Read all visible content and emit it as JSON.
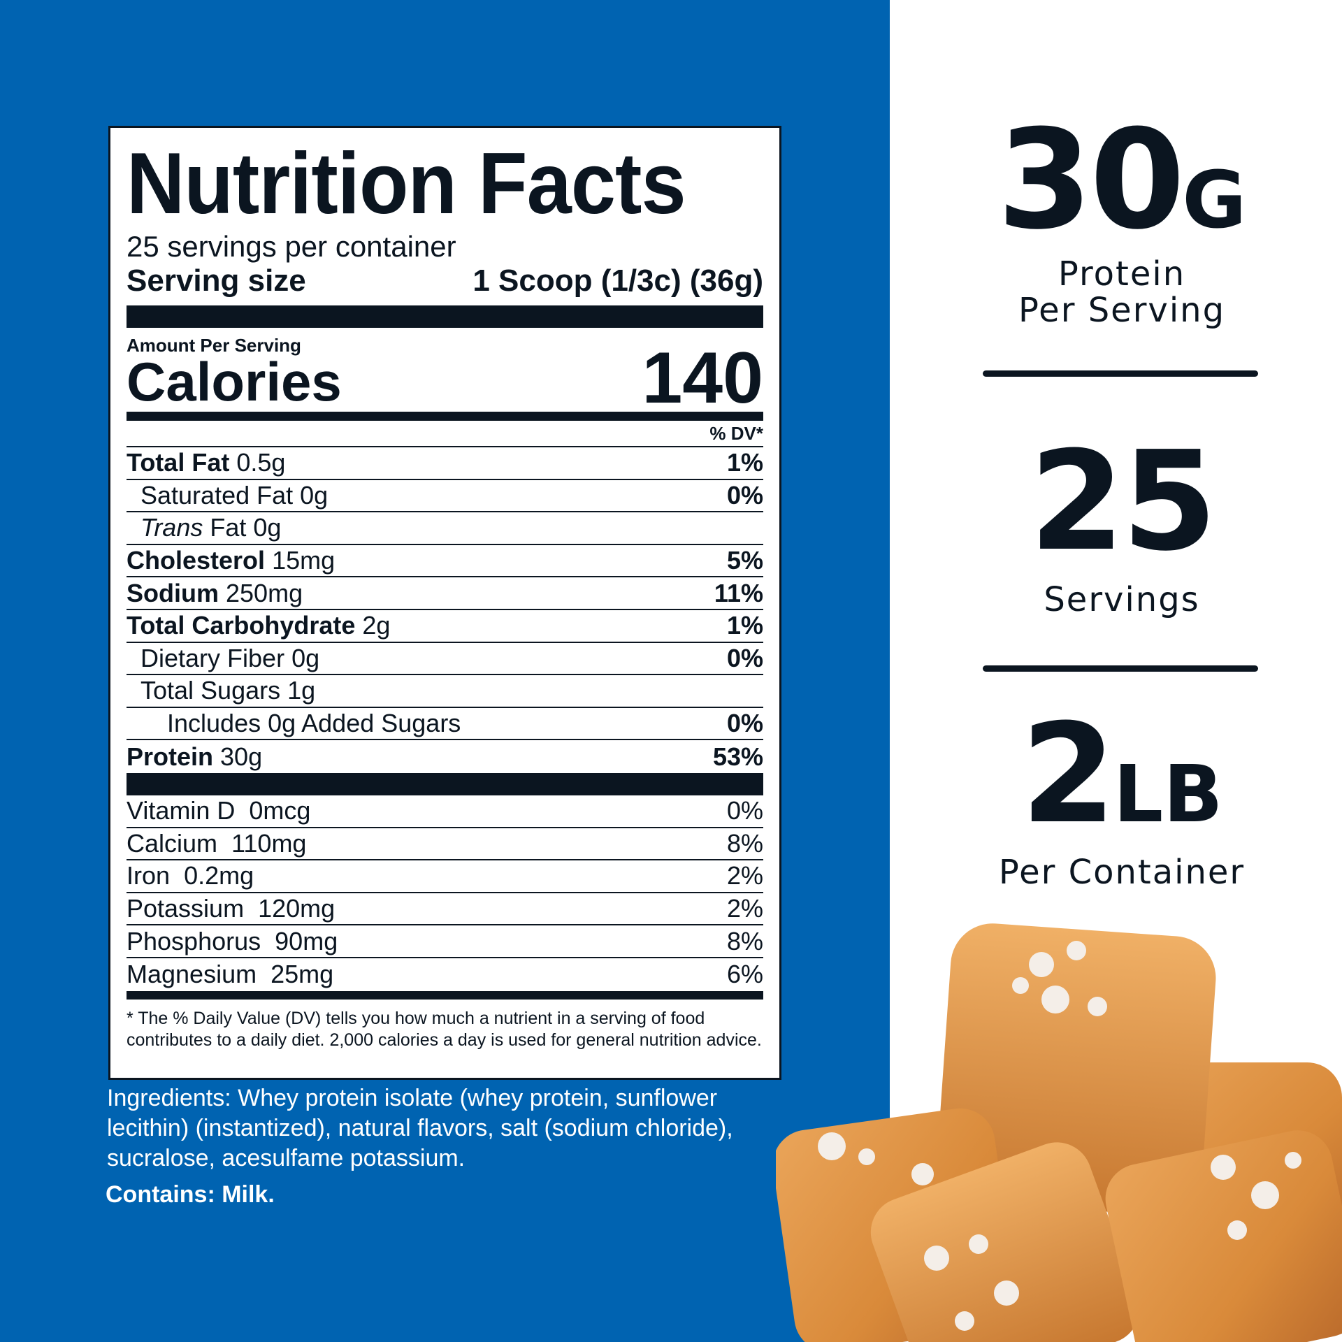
{
  "label": {
    "title": "Nutrition Facts",
    "servings_per_container": "25 servings per container",
    "serving_size_label": "Serving size",
    "serving_size_value": "1 Scoop (1/3c) (36g)",
    "amount_per_serving": "Amount Per Serving",
    "calories_label": "Calories",
    "calories_value": "140",
    "dv_header": "% DV*",
    "nutrients": [
      {
        "name": "Total Fat",
        "amount": "0.5g",
        "dv": "1%",
        "bold": true,
        "indent": 0
      },
      {
        "name": "Saturated Fat",
        "amount": "0g",
        "dv": "0%",
        "bold": false,
        "indent": 1
      },
      {
        "name": "Trans",
        "name_suffix": " Fat",
        "amount": "0g",
        "dv": "",
        "bold": false,
        "indent": 1,
        "italic": true
      },
      {
        "name": "Cholesterol",
        "amount": "15mg",
        "dv": "5%",
        "bold": true,
        "indent": 0
      },
      {
        "name": "Sodium",
        "amount": "250mg",
        "dv": "11%",
        "bold": true,
        "indent": 0
      },
      {
        "name": "Total Carbohydrate",
        "amount": "2g",
        "dv": "1%",
        "bold": true,
        "indent": 0
      },
      {
        "name": "Dietary Fiber",
        "amount": "0g",
        "dv": "0%",
        "bold": false,
        "indent": 1
      },
      {
        "name": "Total Sugars",
        "amount": "1g",
        "dv": "",
        "bold": false,
        "indent": 1
      },
      {
        "name": "Includes 0g Added Sugars",
        "amount": "",
        "dv": "0%",
        "bold": false,
        "indent": 2
      },
      {
        "name": "Protein",
        "amount": "30g",
        "dv": "53%",
        "bold": true,
        "indent": 0
      }
    ],
    "vitamins": [
      {
        "name": "Vitamin D",
        "amount": "0mcg",
        "dv": "0%"
      },
      {
        "name": "Calcium",
        "amount": "110mg",
        "dv": "8%"
      },
      {
        "name": "Iron",
        "amount": "0.2mg",
        "dv": "2%"
      },
      {
        "name": "Potassium",
        "amount": "120mg",
        "dv": "2%"
      },
      {
        "name": "Phosphorus",
        "amount": "90mg",
        "dv": "8%"
      },
      {
        "name": "Magnesium",
        "amount": "25mg",
        "dv": "6%"
      }
    ],
    "footnote": "* The % Daily Value (DV) tells you how much a nutrient in a serving of food contributes to a daily diet. 2,000 calories a day is used for general nutrition advice."
  },
  "ingredients": "Ingredients: Whey protein isolate (whey protein, sunflower lecithin) (instantized), natural flavors, salt (sodium chloride), sucralose, acesulfame potassium.",
  "contains": "Contains: Milk.",
  "stats": [
    {
      "value": "30",
      "unit": "G",
      "caption": [
        "Protein",
        "Per Serving"
      ]
    },
    {
      "value": "25",
      "unit": "",
      "caption": [
        "Servings"
      ]
    },
    {
      "value": "2",
      "unit": "LB",
      "caption": [
        "Per Container"
      ]
    }
  ],
  "colors": {
    "brand_blue": "#0063b1",
    "ink": "#0b1520",
    "caramel": "#d98a3a"
  }
}
